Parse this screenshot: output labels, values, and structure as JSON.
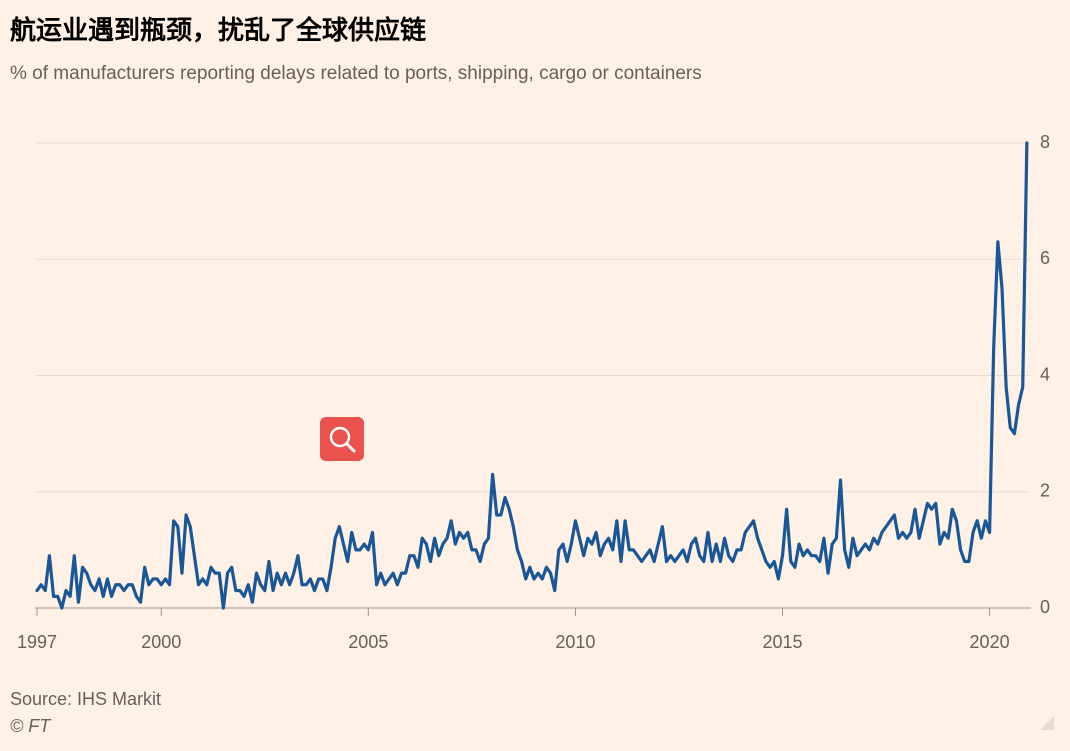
{
  "chart_data": {
    "type": "line",
    "title": "航运业遇到瓶颈，扰乱了全球供应链",
    "subtitle": "% of manufacturers reporting delays related to ports, shipping, cargo or containers",
    "source": "Source: IHS Markit",
    "credit": "© FT",
    "color": "#1a5797",
    "grid": true,
    "xlim": [
      1997,
      2021
    ],
    "xticks": [
      1997,
      2000,
      2005,
      2010,
      2015,
      2020
    ],
    "ylim": [
      0,
      8
    ],
    "yticks": [
      0,
      2,
      4,
      6,
      8
    ],
    "x": [
      1997.0,
      1997.1,
      1997.2,
      1997.3,
      1997.4,
      1997.5,
      1997.6,
      1997.7,
      1997.8,
      1997.9,
      1998.0,
      1998.1,
      1998.2,
      1998.3,
      1998.4,
      1998.5,
      1998.6,
      1998.7,
      1998.8,
      1998.9,
      1999.0,
      1999.1,
      1999.2,
      1999.3,
      1999.4,
      1999.5,
      1999.6,
      1999.7,
      1999.8,
      1999.9,
      2000.0,
      2000.1,
      2000.2,
      2000.3,
      2000.4,
      2000.5,
      2000.6,
      2000.7,
      2000.8,
      2000.9,
      2001.0,
      2001.1,
      2001.2,
      2001.3,
      2001.4,
      2001.5,
      2001.6,
      2001.7,
      2001.8,
      2001.9,
      2002.0,
      2002.1,
      2002.2,
      2002.3,
      2002.4,
      2002.5,
      2002.6,
      2002.7,
      2002.8,
      2002.9,
      2003.0,
      2003.1,
      2003.2,
      2003.3,
      2003.4,
      2003.5,
      2003.6,
      2003.7,
      2003.8,
      2003.9,
      2004.0,
      2004.1,
      2004.2,
      2004.3,
      2004.4,
      2004.5,
      2004.6,
      2004.7,
      2004.8,
      2004.9,
      2005.0,
      2005.1,
      2005.2,
      2005.3,
      2005.4,
      2005.5,
      2005.6,
      2005.7,
      2005.8,
      2005.9,
      2006.0,
      2006.1,
      2006.2,
      2006.3,
      2006.4,
      2006.5,
      2006.6,
      2006.7,
      2006.8,
      2006.9,
      2007.0,
      2007.1,
      2007.2,
      2007.3,
      2007.4,
      2007.5,
      2007.6,
      2007.7,
      2007.8,
      2007.9,
      2008.0,
      2008.1,
      2008.2,
      2008.3,
      2008.4,
      2008.5,
      2008.6,
      2008.7,
      2008.8,
      2008.9,
      2009.0,
      2009.1,
      2009.2,
      2009.3,
      2009.4,
      2009.5,
      2009.6,
      2009.7,
      2009.8,
      2009.9,
      2010.0,
      2010.1,
      2010.2,
      2010.3,
      2010.4,
      2010.5,
      2010.6,
      2010.7,
      2010.8,
      2010.9,
      2011.0,
      2011.1,
      2011.2,
      2011.3,
      2011.4,
      2011.5,
      2011.6,
      2011.7,
      2011.8,
      2011.9,
      2012.0,
      2012.1,
      2012.2,
      2012.3,
      2012.4,
      2012.5,
      2012.6,
      2012.7,
      2012.8,
      2012.9,
      2013.0,
      2013.1,
      2013.2,
      2013.3,
      2013.4,
      2013.5,
      2013.6,
      2013.7,
      2013.8,
      2013.9,
      2014.0,
      2014.1,
      2014.2,
      2014.3,
      2014.4,
      2014.5,
      2014.6,
      2014.7,
      2014.8,
      2014.9,
      2015.0,
      2015.1,
      2015.2,
      2015.3,
      2015.4,
      2015.5,
      2015.6,
      2015.7,
      2015.8,
      2015.9,
      2016.0,
      2016.1,
      2016.2,
      2016.3,
      2016.4,
      2016.5,
      2016.6,
      2016.7,
      2016.8,
      2016.9,
      2017.0,
      2017.1,
      2017.2,
      2017.3,
      2017.4,
      2017.5,
      2017.6,
      2017.7,
      2017.8,
      2017.9,
      2018.0,
      2018.1,
      2018.2,
      2018.3,
      2018.4,
      2018.5,
      2018.6,
      2018.7,
      2018.8,
      2018.9,
      2019.0,
      2019.1,
      2019.2,
      2019.3,
      2019.4,
      2019.5,
      2019.6,
      2019.7,
      2019.8,
      2019.9,
      2020.0,
      2020.1,
      2020.2,
      2020.3,
      2020.4,
      2020.5,
      2020.6,
      2020.7,
      2020.8,
      2020.9
    ],
    "values": [
      0.3,
      0.4,
      0.3,
      0.9,
      0.2,
      0.2,
      0.0,
      0.3,
      0.2,
      0.9,
      0.1,
      0.7,
      0.6,
      0.4,
      0.3,
      0.5,
      0.2,
      0.5,
      0.2,
      0.4,
      0.4,
      0.3,
      0.4,
      0.4,
      0.2,
      0.1,
      0.7,
      0.4,
      0.5,
      0.5,
      0.4,
      0.5,
      0.4,
      1.5,
      1.4,
      0.6,
      1.6,
      1.4,
      0.9,
      0.4,
      0.5,
      0.4,
      0.7,
      0.6,
      0.6,
      0.0,
      0.6,
      0.7,
      0.3,
      0.3,
      0.2,
      0.4,
      0.1,
      0.6,
      0.4,
      0.3,
      0.8,
      0.3,
      0.6,
      0.4,
      0.6,
      0.4,
      0.6,
      0.9,
      0.4,
      0.4,
      0.5,
      0.3,
      0.5,
      0.5,
      0.3,
      0.7,
      1.2,
      1.4,
      1.1,
      0.8,
      1.3,
      1.0,
      1.0,
      1.1,
      1.0,
      1.3,
      0.4,
      0.6,
      0.4,
      0.5,
      0.6,
      0.4,
      0.6,
      0.6,
      0.9,
      0.9,
      0.7,
      1.2,
      1.1,
      0.8,
      1.2,
      0.9,
      1.1,
      1.2,
      1.5,
      1.1,
      1.3,
      1.2,
      1.3,
      1.0,
      1.0,
      0.8,
      1.1,
      1.2,
      2.3,
      1.6,
      1.6,
      1.9,
      1.7,
      1.4,
      1.0,
      0.8,
      0.5,
      0.7,
      0.5,
      0.6,
      0.5,
      0.7,
      0.6,
      0.3,
      1.0,
      1.1,
      0.8,
      1.1,
      1.5,
      1.2,
      0.9,
      1.2,
      1.1,
      1.3,
      0.9,
      1.1,
      1.2,
      1.0,
      1.5,
      0.8,
      1.5,
      1.0,
      1.0,
      0.9,
      0.8,
      0.9,
      1.0,
      0.8,
      1.1,
      1.4,
      0.8,
      0.9,
      0.8,
      0.9,
      1.0,
      0.8,
      1.1,
      1.2,
      0.9,
      0.8,
      1.3,
      0.8,
      1.1,
      0.8,
      1.2,
      0.9,
      0.8,
      1.0,
      1.0,
      1.3,
      1.4,
      1.5,
      1.2,
      1.0,
      0.8,
      0.7,
      0.8,
      0.5,
      0.9,
      1.7,
      0.8,
      0.7,
      1.1,
      0.9,
      1.0,
      0.9,
      0.9,
      0.8,
      1.2,
      0.6,
      1.1,
      1.2,
      2.2,
      1.0,
      0.7,
      1.2,
      0.9,
      1.0,
      1.1,
      1.0,
      1.2,
      1.1,
      1.3,
      1.4,
      1.5,
      1.6,
      1.2,
      1.3,
      1.2,
      1.3,
      1.7,
      1.2,
      1.5,
      1.8,
      1.7,
      1.8,
      1.1,
      1.3,
      1.2,
      1.7,
      1.5,
      1.0,
      0.8,
      0.8,
      1.3,
      1.5,
      1.2,
      1.5,
      1.3,
      4.5,
      6.3,
      5.5,
      3.8,
      3.1,
      3.0,
      3.5,
      3.8,
      8.0
    ]
  }
}
